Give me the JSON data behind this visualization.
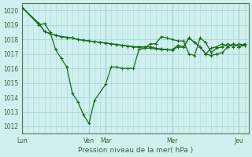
{
  "background_color": "#cff0ee",
  "grid_color": "#aad8d8",
  "line_color": "#1a6b1a",
  "marker_color": "#1a6b1a",
  "title": "Pression niveau de la mer( hPa )",
  "ylim": [
    1011.5,
    1020.5
  ],
  "yticks": [
    1012,
    1013,
    1014,
    1015,
    1016,
    1017,
    1018,
    1019,
    1020
  ],
  "day_labels": [
    "Lun",
    "Ven",
    "Mar",
    "Mer",
    "Jeu"
  ],
  "day_positions": [
    0,
    48,
    60,
    108,
    156
  ],
  "xlim": [
    0,
    163
  ],
  "s1_x": [
    0,
    12,
    16,
    20,
    24,
    28,
    32,
    36,
    40,
    44,
    48,
    52,
    60,
    64,
    68,
    72,
    76,
    80,
    84,
    88,
    92,
    96,
    100,
    104,
    108,
    112,
    116,
    120,
    124,
    128,
    132,
    136,
    140,
    144,
    148,
    152,
    156,
    160
  ],
  "s1_y": [
    1020.2,
    1019.0,
    1019.1,
    1018.5,
    1017.3,
    1016.7,
    1016.1,
    1014.3,
    1013.7,
    1012.8,
    1012.2,
    1013.8,
    1014.9,
    1016.1,
    1016.1,
    1016.0,
    1016.0,
    1016.0,
    1017.3,
    1017.4,
    1017.7,
    1017.7,
    1018.2,
    1018.1,
    1018.0,
    1017.9,
    1017.9,
    1017.0,
    1016.9,
    1018.1,
    1017.8,
    1017.1,
    1017.4,
    1017.5,
    1017.7,
    1017.5,
    1017.7,
    1017.6
  ],
  "s2_x": [
    0,
    12,
    16,
    20,
    24,
    28,
    32,
    36,
    40,
    44,
    48,
    52,
    56,
    60,
    64,
    68,
    72,
    76,
    80,
    84,
    88,
    92,
    96,
    100,
    104,
    108,
    112,
    116,
    120,
    124,
    128,
    132,
    136,
    140,
    144,
    148,
    152,
    156,
    160
  ],
  "s2_y": [
    1020.2,
    1019.1,
    1018.55,
    1018.4,
    1018.3,
    1018.2,
    1018.15,
    1018.1,
    1018.0,
    1017.95,
    1017.9,
    1017.85,
    1017.8,
    1017.75,
    1017.7,
    1017.65,
    1017.6,
    1017.55,
    1017.5,
    1017.45,
    1017.4,
    1017.4,
    1017.35,
    1017.3,
    1017.3,
    1017.25,
    1017.5,
    1017.45,
    1018.1,
    1017.8,
    1017.5,
    1017.0,
    1016.9,
    1017.0,
    1017.1,
    1017.5,
    1017.7,
    1017.5,
    1017.7
  ],
  "s3_x": [
    0,
    12,
    16,
    20,
    24,
    28,
    32,
    36,
    40,
    44,
    48,
    52,
    56,
    60,
    64,
    68,
    72,
    76,
    80,
    84,
    88,
    92,
    96,
    100,
    104,
    108,
    112,
    116,
    120,
    124,
    128,
    132,
    136,
    140,
    144,
    148,
    152,
    156,
    160
  ],
  "s3_y": [
    1020.2,
    1019.1,
    1018.55,
    1018.4,
    1018.3,
    1018.2,
    1018.15,
    1018.1,
    1018.0,
    1017.95,
    1017.9,
    1017.85,
    1017.8,
    1017.75,
    1017.7,
    1017.65,
    1017.6,
    1017.55,
    1017.5,
    1017.5,
    1017.5,
    1017.5,
    1017.4,
    1017.35,
    1017.3,
    1017.3,
    1017.6,
    1017.5,
    1018.1,
    1017.8,
    1017.5,
    1017.0,
    1017.4,
    1017.5,
    1017.7,
    1017.5,
    1017.7,
    1017.5,
    1017.6
  ]
}
